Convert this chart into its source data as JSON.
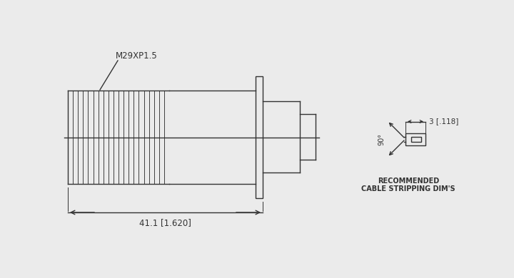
{
  "bg_color": "#ebebeb",
  "line_color": "#333333",
  "main_label": "M29XP1.5",
  "dim_label": "41.1 [1.620]",
  "strip_label1": "RECOMMENDED",
  "strip_label2": "CABLE STRIPPING DIM'S",
  "strip_dim": "3 [.118]",
  "angle_label": "90°"
}
